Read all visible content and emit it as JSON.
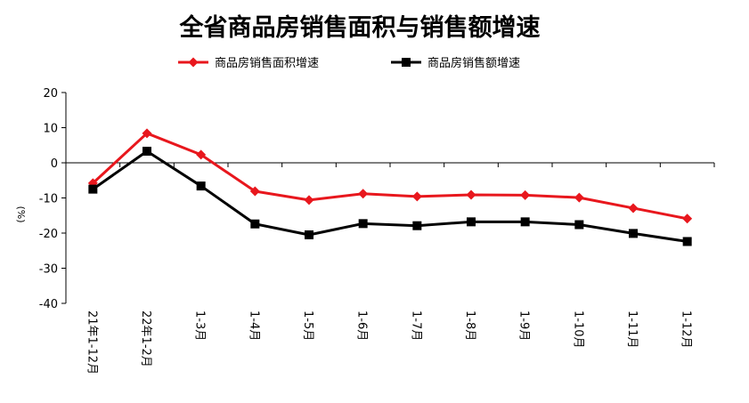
{
  "chart_data": {
    "type": "line",
    "title": "全省商品房销售面积与销售额增速",
    "ylabel": "(%)",
    "xlabel": "",
    "ylim": [
      -40,
      20
    ],
    "yticks": [
      20,
      10,
      0,
      -10,
      -20,
      -30,
      -40
    ],
    "grid": false,
    "legend_position": "top",
    "categories": [
      "21年1-12月",
      "22年1-2月",
      "1-3月",
      "1-4月",
      "1-5月",
      "1-6月",
      "1-7月",
      "1-8月",
      "1-9月",
      "1-10月",
      "1-11月",
      "1-12月"
    ],
    "series": [
      {
        "name": "商品房销售面积增速",
        "color": "#e8171d",
        "marker": "diamond",
        "values": [
          -5.8,
          8.4,
          2.3,
          -8.1,
          -10.6,
          -8.8,
          -9.6,
          -9.1,
          -9.2,
          -9.9,
          -12.9,
          -15.9
        ]
      },
      {
        "name": "商品房销售额增速",
        "color": "#000000",
        "marker": "square",
        "values": [
          -7.5,
          3.3,
          -6.6,
          -17.4,
          -20.5,
          -17.3,
          -17.9,
          -16.8,
          -16.8,
          -17.6,
          -20.1,
          -22.4
        ]
      }
    ]
  }
}
